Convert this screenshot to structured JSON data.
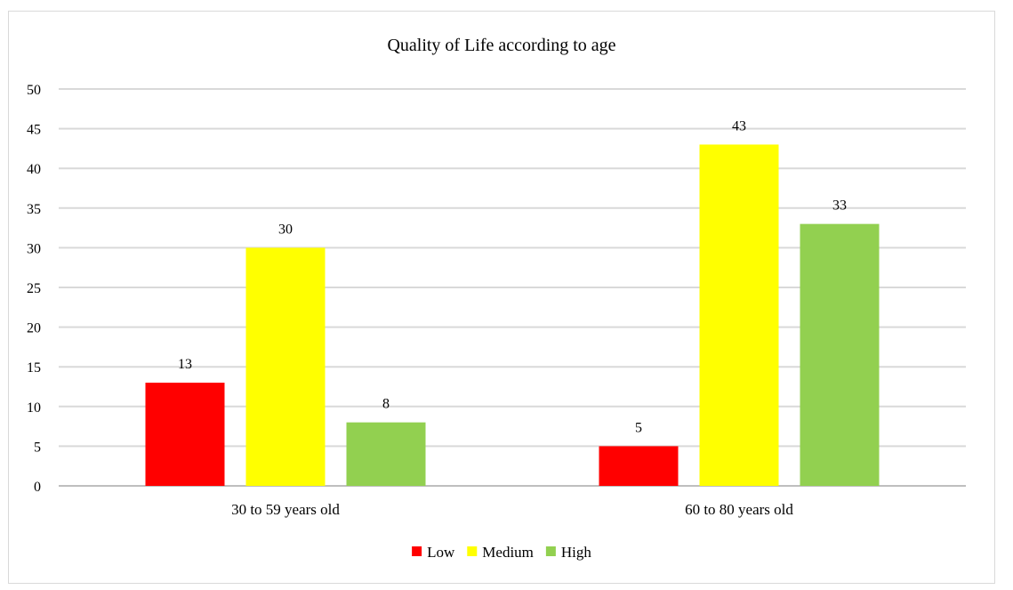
{
  "chart_data": {
    "type": "bar",
    "title": "Quality of Life according to age",
    "categories": [
      "30 to 59 years old",
      "60 to 80 years old"
    ],
    "series": [
      {
        "name": "Low",
        "values": [
          13,
          5
        ],
        "color": "#ff0000"
      },
      {
        "name": "Medium",
        "values": [
          30,
          43
        ],
        "color": "#ffff00"
      },
      {
        "name": "High",
        "values": [
          8,
          33
        ],
        "color": "#92d050"
      }
    ],
    "ylim": [
      0,
      50
    ],
    "yticks": [
      0,
      5,
      10,
      15,
      20,
      25,
      30,
      35,
      40,
      45,
      50
    ],
    "xlabel": "",
    "ylabel": "",
    "grid": true,
    "legend_position": "bottom",
    "data_labels": true
  }
}
